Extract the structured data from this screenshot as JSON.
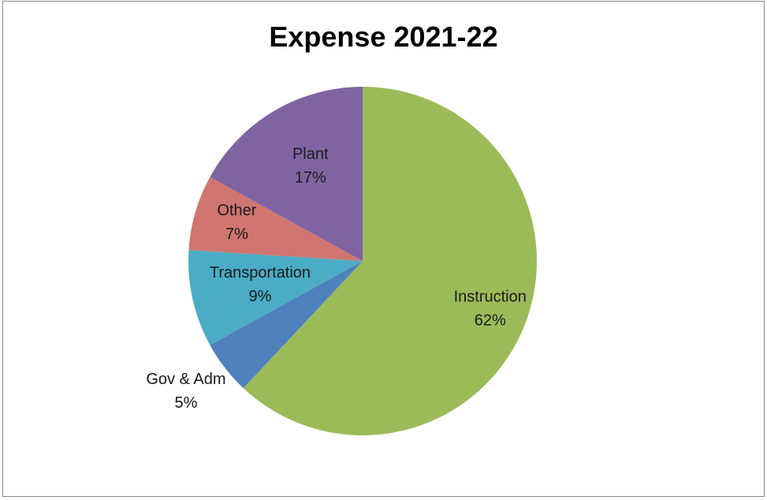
{
  "chart_data": {
    "type": "pie",
    "title": "Expense 2021-22",
    "slices": [
      {
        "label": "Instruction",
        "value": 62,
        "value_label": "62%",
        "color": "#9BBB59"
      },
      {
        "label": "Gov & Adm",
        "value": 5,
        "value_label": "5%",
        "color": "#4F81BD"
      },
      {
        "label": "Transportation",
        "value": 9,
        "value_label": "9%",
        "color": "#4BACC6"
      },
      {
        "label": "Other",
        "value": 7,
        "value_label": "7%",
        "color": "#D0756F"
      },
      {
        "label": "Plant",
        "value": 17,
        "value_label": "17%",
        "color": "#8064A2"
      }
    ],
    "start": "12 o'clock",
    "direction": "clockwise",
    "legend": "none"
  }
}
